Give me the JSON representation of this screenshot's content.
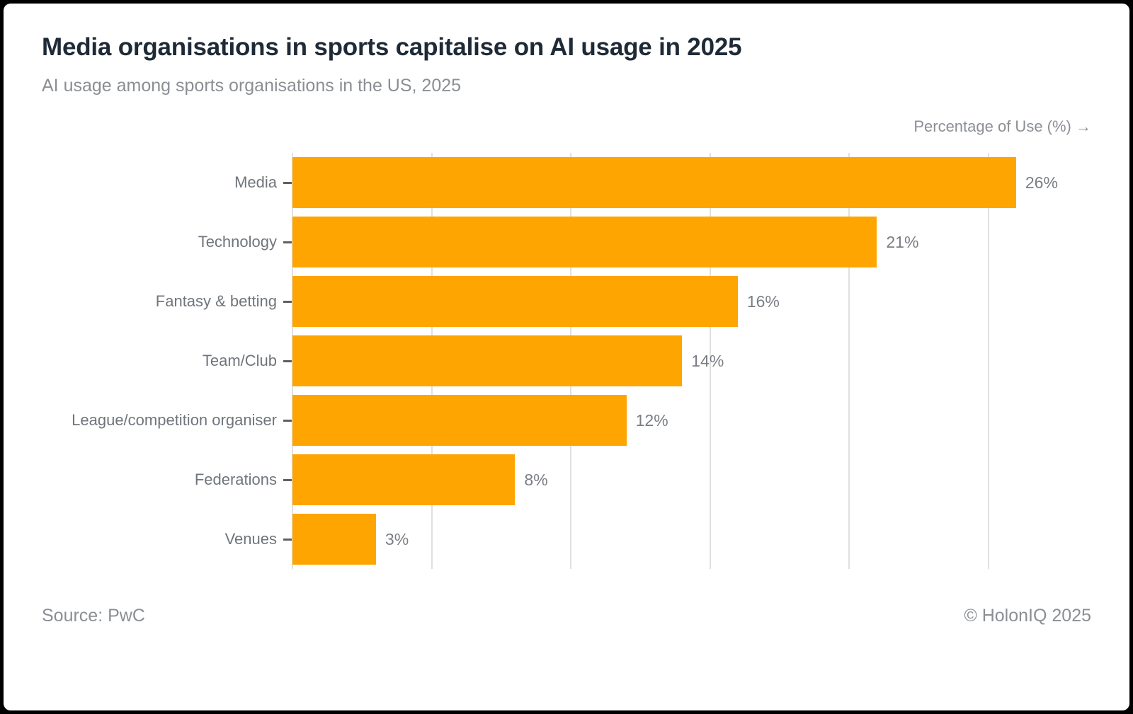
{
  "header": {
    "title": "Media organisations in sports capitalise on AI usage in 2025",
    "subtitle": "AI usage among sports organisations in the US, 2025"
  },
  "axis": {
    "label": "Percentage of Use (%) →"
  },
  "chart_data": {
    "type": "bar",
    "orientation": "horizontal",
    "title": "Media organisations in sports capitalise on AI usage in 2025",
    "subtitle": "AI usage among sports organisations in the US, 2025",
    "xlabel": "Percentage of Use (%)",
    "ylabel": "",
    "categories": [
      "Media",
      "Technology",
      "Fantasy & betting",
      "Team/Club",
      "League/competition organiser",
      "Federations",
      "Venues"
    ],
    "values": [
      26,
      21,
      16,
      14,
      12,
      8,
      3
    ],
    "value_labels": [
      "26%",
      "21%",
      "16%",
      "14%",
      "12%",
      "8%",
      "3%"
    ],
    "xlim": [
      0,
      28.7
    ],
    "gridline_values": [
      0,
      5,
      10,
      15,
      20,
      25
    ],
    "grid": true,
    "legend": false,
    "bar_color": "#FFA502",
    "gridline_color": "#e0e0e0"
  },
  "footer": {
    "source": "Source: PwC",
    "copyright": "© HolonIQ 2025"
  }
}
